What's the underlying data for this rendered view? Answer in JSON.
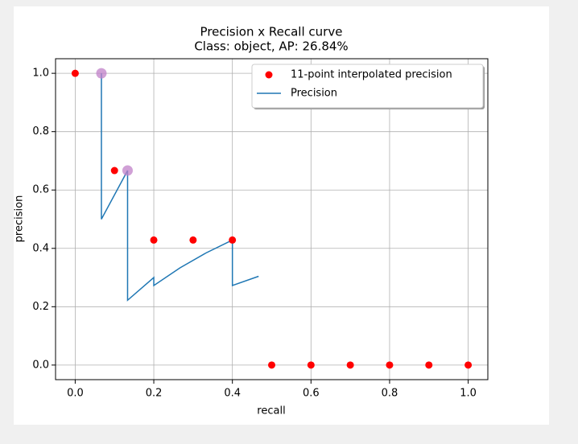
{
  "chart_data": {
    "type": "line",
    "title": [
      "Precision x Recall curve",
      "Class: object, AP: 26.84%"
    ],
    "xlabel": "recall",
    "ylabel": "precision",
    "xlim": [
      -0.05,
      1.05
    ],
    "ylim": [
      -0.05,
      1.05
    ],
    "xticks": [
      {
        "value": 0,
        "label": "0.0"
      },
      0.2,
      0.4,
      0.6,
      0.8,
      {
        "value": 1,
        "label": "1.0"
      }
    ],
    "yticks": [
      {
        "value": 0,
        "label": "0.0"
      },
      0.2,
      0.4,
      0.6,
      0.8,
      {
        "value": 1,
        "label": "1.0"
      }
    ],
    "grid": true,
    "legend": "upper right",
    "series": [
      {
        "name": "11-point interpolated precision",
        "kind": "scatter",
        "color": "#ff0000",
        "x": [
          0,
          0.1,
          0.2,
          0.3,
          0.4,
          0.5,
          0.6,
          0.7,
          0.8,
          0.9,
          1.0
        ],
        "values": [
          1.0,
          0.6667,
          0.4286,
          0.4286,
          0.4286,
          0,
          0,
          0,
          0,
          0,
          0
        ]
      },
      {
        "name": "Precision",
        "kind": "line",
        "color": "#1f77b4",
        "x": [
          0.0667,
          0.0667,
          0.1333,
          0.1333,
          0.2,
          0.2,
          0.2667,
          0.3333,
          0.4,
          0.4,
          0.4667
        ],
        "values": [
          1.0,
          0.5,
          0.6667,
          0.2222,
          0.3,
          0.2727,
          0.3333,
          0.3846,
          0.4286,
          0.2727,
          0.3043
        ]
      },
      {
        "kind": "highlight",
        "color": "#c080c8",
        "x": [
          0.0667,
          0.1333
        ],
        "values": [
          1.0,
          0.6667
        ]
      }
    ]
  }
}
